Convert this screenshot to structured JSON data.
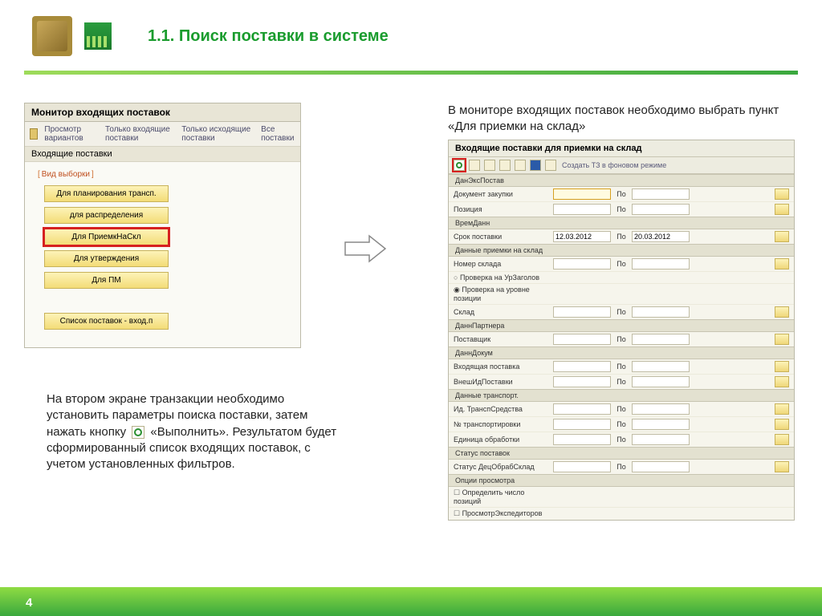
{
  "slide": {
    "title": "1.1. Поиск поставки в системе",
    "page_number": "4"
  },
  "intro_text": "В мониторе входящих поставок необходимо выбрать пункт «Для приемки на склад»",
  "bottom_paragraph": {
    "part1": "На втором экране транзакции необходимо установить параметры поиска поставки, затем нажать кнопку ",
    "part2": " «Выполнить». Результатом будет сформированный список входящих поставок, с учетом установленных фильтров."
  },
  "left_panel": {
    "window_title": "Монитор входящих поставок",
    "menu": [
      "Просмотр вариантов",
      "Только входящие поставки",
      "Только исходящие поставки",
      "Все поставки"
    ],
    "sub_tab": "Входящие поставки",
    "group_label": "Вид выборки",
    "buttons": [
      "Для планирования трансп.",
      "для распределения",
      "Для ПриемкНаСкл",
      "Для утверждения",
      "Для ПМ"
    ],
    "highlighted_index": 2,
    "last_button": "Список поставок - вход.п"
  },
  "right_panel": {
    "window_title": "Входящие поставки для приемки на склад",
    "toolbar_text": "Создать ТЗ в фоновом режиме",
    "po_label": "По",
    "sections": [
      {
        "header": "ДанЭксПостав",
        "rows": [
          {
            "label": "Документ закупки",
            "v1": "",
            "hl1": true,
            "v2": ""
          },
          {
            "label": "Позиция",
            "v1": "",
            "v2": ""
          }
        ]
      },
      {
        "header": "ВремДанн",
        "rows": [
          {
            "label": "Срок поставки",
            "v1": "12.03.2012",
            "v2": "20.03.2012"
          }
        ]
      },
      {
        "header": "Данные приемки на склад",
        "rows": [
          {
            "label": "Номер склада",
            "v1": "",
            "v2": ""
          },
          {
            "label": "Проверка на УрЗаголов",
            "radio": true
          },
          {
            "label": "Проверка на уровне позиции",
            "radio": true,
            "selected": true
          },
          {
            "label": "Склад",
            "v1": "",
            "v2": ""
          }
        ]
      },
      {
        "header": "ДаннПартнера",
        "rows": [
          {
            "label": "Поставщик",
            "v1": "",
            "v2": ""
          }
        ]
      },
      {
        "header": "ДаннДокум",
        "rows": [
          {
            "label": "Входящая поставка",
            "v1": "",
            "v2": ""
          },
          {
            "label": "ВнешИдПоставки",
            "v1": "",
            "v2": ""
          }
        ]
      },
      {
        "header": "Данные транспорт.",
        "rows": [
          {
            "label": "Ид. ТранспСредства",
            "v1": "",
            "v2": ""
          },
          {
            "label": "№ транспортировки",
            "v1": "",
            "v2": ""
          },
          {
            "label": "Единица обработки",
            "v1": "",
            "v2": ""
          }
        ]
      },
      {
        "header": "Статус поставок",
        "rows": [
          {
            "label": "Статус ДецОбрабСклад",
            "v1": "",
            "v2": ""
          }
        ]
      },
      {
        "header": "Опции просмотра",
        "rows": [
          {
            "label": "Определить число позиций",
            "check": true
          },
          {
            "label": "ПросмотрЭкспедиторов",
            "check": true
          }
        ]
      }
    ]
  },
  "colors": {
    "accent_green": "#1a9c2e",
    "highlight_red": "#d62020",
    "sap_beige": "#f2f0e8",
    "sap_button": "#f3dc77"
  }
}
